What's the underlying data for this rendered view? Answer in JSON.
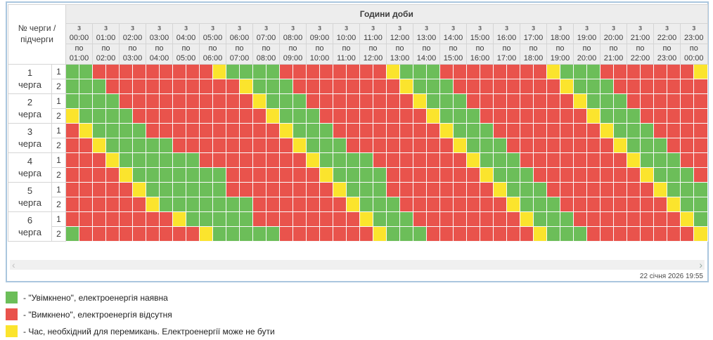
{
  "colors": {
    "on": "#6cbe59",
    "off": "#e9534c",
    "switch": "#fbe42d"
  },
  "table": {
    "corner": {
      "line1": "№ черги /",
      "line2": "підчерги"
    },
    "header_title": "Години доби",
    "from_prefix": "з",
    "to_prefix": "по",
    "hours": [
      {
        "from": "00:00",
        "to": "01:00"
      },
      {
        "from": "01:00",
        "to": "02:00"
      },
      {
        "from": "02:00",
        "to": "03:00"
      },
      {
        "from": "03:00",
        "to": "04:00"
      },
      {
        "from": "04:00",
        "to": "05:00"
      },
      {
        "from": "05:00",
        "to": "06:00"
      },
      {
        "from": "06:00",
        "to": "07:00"
      },
      {
        "from": "07:00",
        "to": "08:00"
      },
      {
        "from": "08:00",
        "to": "09:00"
      },
      {
        "from": "09:00",
        "to": "10:00"
      },
      {
        "from": "10:00",
        "to": "11:00"
      },
      {
        "from": "11:00",
        "to": "12:00"
      },
      {
        "from": "12:00",
        "to": "13:00"
      },
      {
        "from": "13:00",
        "to": "14:00"
      },
      {
        "from": "14:00",
        "to": "15:00"
      },
      {
        "from": "15:00",
        "to": "16:00"
      },
      {
        "from": "16:00",
        "to": "17:00"
      },
      {
        "from": "17:00",
        "to": "18:00"
      },
      {
        "from": "18:00",
        "to": "19:00"
      },
      {
        "from": "19:00",
        "to": "20:00"
      },
      {
        "from": "20:00",
        "to": "21:00"
      },
      {
        "from": "21:00",
        "to": "22:00"
      },
      {
        "from": "22:00",
        "to": "23:00"
      },
      {
        "from": "23:00",
        "to": "00:00"
      }
    ],
    "cell_legend": {
      "G": "on",
      "R": "off",
      "Y": "switch"
    },
    "queues": [
      {
        "num": "1",
        "word": "черга",
        "subrows": [
          {
            "sub": "1",
            "cells": "GGRRRRRRRRRYGGGGRRRRRRRRYGGGRRRRRRRRYGGGRRRRRRRY"
          },
          {
            "sub": "2",
            "cells": "GGGRRRRRRRRRRYGGGRRRRRRRRYGGGRRRRRRRRYGGGRRRRRRR"
          }
        ]
      },
      {
        "num": "2",
        "word": "черга",
        "subrows": [
          {
            "sub": "1",
            "cells": "GGGGRRRRRRRRRRYGGGRRRRRRRRYGGGRRRRRRRRYGGGRRRRRR"
          },
          {
            "sub": "2",
            "cells": "YGGGGRRRRRRRRRRYGGGRRRRRRRRYGGGRRRRRRRRYGGGRRRRR"
          }
        ]
      },
      {
        "num": "3",
        "word": "черга",
        "subrows": [
          {
            "sub": "1",
            "cells": "RYGGGGRRRRRRRRRRYGGGRRRRRRRRYGGGRRRRRRRRYGGGRRRR"
          },
          {
            "sub": "2",
            "cells": "RRYGGGGGRRRRRRRRRYGGGRRRRRRRRYGGGRRRRRRRRYGGGRRR"
          }
        ]
      },
      {
        "num": "4",
        "word": "черга",
        "subrows": [
          {
            "sub": "1",
            "cells": "RRRYGGGGGGRRRRRRRRYGGGGRRRRRRRYGGGRRRRRRRRYGGGRR"
          },
          {
            "sub": "2",
            "cells": "RRRRYGGGGGGGRRRRRRRYGGGGRRRRRRRYGGGRRRRRRRRYGGGR"
          }
        ]
      },
      {
        "num": "5",
        "word": "черга",
        "subrows": [
          {
            "sub": "1",
            "cells": "RRRRRYGGGGGGRRRRRRRRYGGGRRRRRRRRYGGGRRRRRRRRYGGG"
          },
          {
            "sub": "2",
            "cells": "RRRRRRYGGGGGGGRRRRRRRYGGGRRRRRRRRYGGGRRRRRRRRYGG"
          }
        ]
      },
      {
        "num": "6",
        "word": "черга",
        "subrows": [
          {
            "sub": "1",
            "cells": "RRRRRRRRYGGGGGRRRRRRRRYGGGRRRRRRRRYGGGRRRRRRRRYG"
          },
          {
            "sub": "2",
            "cells": "GRRRRRRRRRYGGGGGRRRRRRRYGGGRRRRRRRRYGGGRRRRRRRRY"
          }
        ]
      }
    ]
  },
  "footer": {
    "scroll_left_icon": "‹",
    "scroll_right_icon": "›",
    "timestamp": "22 січня 2026 19:55"
  },
  "legend": [
    {
      "key": "on",
      "text": "- \"Увімкнено\", електроенергія наявна"
    },
    {
      "key": "off",
      "text": "- \"Вимкнено\", електроенергія відсутня"
    },
    {
      "key": "switch",
      "text": "- Час, необхідний для перемикань. Електроенергії може не бути"
    }
  ]
}
